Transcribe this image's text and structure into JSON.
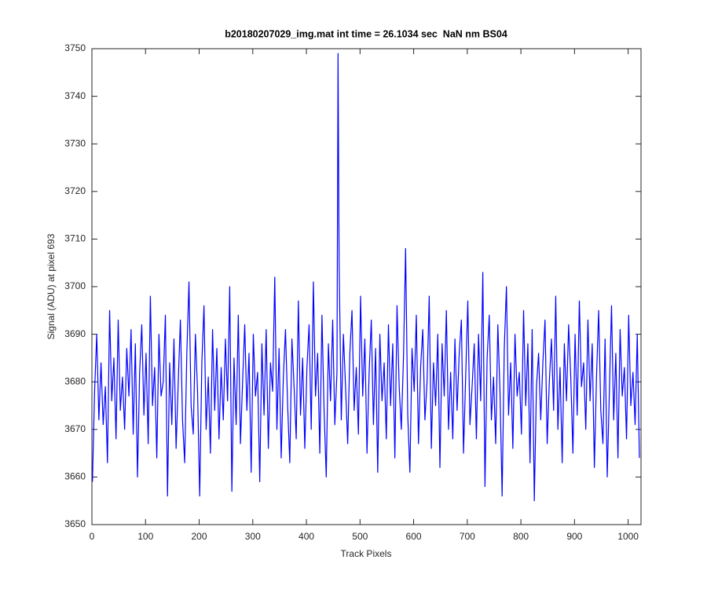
{
  "chart_data": {
    "type": "line",
    "title": "b20180207029_img.mat int time = 26.1034 sec  NaN nm BS04",
    "xlabel": "Track Pixels",
    "ylabel": "Signal (ADU) at pixel 693",
    "color": "#0000ff",
    "xlim": [
      0,
      1024
    ],
    "ylim": [
      3650,
      3750
    ],
    "xticks": [
      0,
      100,
      200,
      300,
      400,
      500,
      600,
      700,
      800,
      900,
      1000
    ],
    "yticks": [
      3650,
      3660,
      3670,
      3680,
      3690,
      3700,
      3710,
      3720,
      3730,
      3740,
      3750
    ],
    "x": [
      1,
      5,
      9,
      13,
      17,
      21,
      25,
      29,
      33,
      37,
      41,
      45,
      49,
      53,
      57,
      61,
      65,
      69,
      73,
      77,
      81,
      85,
      89,
      93,
      97,
      101,
      105,
      109,
      113,
      117,
      121,
      125,
      129,
      133,
      137,
      141,
      145,
      149,
      153,
      157,
      161,
      165,
      169,
      173,
      177,
      181,
      185,
      189,
      193,
      197,
      201,
      205,
      209,
      213,
      217,
      221,
      225,
      229,
      233,
      237,
      241,
      245,
      249,
      253,
      257,
      261,
      265,
      269,
      273,
      277,
      281,
      285,
      289,
      293,
      297,
      301,
      305,
      309,
      313,
      317,
      321,
      325,
      329,
      333,
      337,
      341,
      345,
      349,
      353,
      357,
      361,
      365,
      369,
      373,
      377,
      381,
      385,
      389,
      393,
      397,
      401,
      405,
      409,
      413,
      417,
      421,
      425,
      429,
      433,
      437,
      441,
      445,
      449,
      453,
      457,
      459,
      461,
      465,
      469,
      473,
      477,
      481,
      485,
      489,
      493,
      497,
      501,
      505,
      509,
      513,
      517,
      521,
      525,
      529,
      533,
      537,
      541,
      545,
      549,
      553,
      557,
      561,
      565,
      569,
      573,
      577,
      581,
      585,
      589,
      593,
      597,
      601,
      605,
      609,
      613,
      617,
      621,
      625,
      629,
      633,
      637,
      641,
      645,
      649,
      653,
      657,
      661,
      665,
      669,
      673,
      677,
      681,
      685,
      689,
      693,
      697,
      701,
      705,
      709,
      713,
      717,
      721,
      725,
      729,
      733,
      737,
      741,
      745,
      749,
      753,
      757,
      761,
      765,
      769,
      773,
      777,
      781,
      785,
      789,
      793,
      797,
      801,
      805,
      809,
      813,
      817,
      821,
      825,
      829,
      833,
      837,
      841,
      845,
      849,
      853,
      857,
      861,
      865,
      869,
      873,
      877,
      881,
      885,
      889,
      893,
      897,
      901,
      905,
      909,
      913,
      917,
      921,
      925,
      929,
      933,
      937,
      941,
      945,
      949,
      953,
      957,
      961,
      965,
      969,
      973,
      977,
      981,
      985,
      989,
      993,
      997,
      1001,
      1005,
      1009,
      1013,
      1017,
      1021
    ],
    "values": [
      3659,
      3678,
      3690,
      3672,
      3684,
      3671,
      3679,
      3663,
      3695,
      3676,
      3685,
      3668,
      3693,
      3674,
      3681,
      3670,
      3687,
      3677,
      3691,
      3669,
      3688,
      3660,
      3682,
      3692,
      3673,
      3686,
      3667,
      3698,
      3675,
      3683,
      3664,
      3690,
      3677,
      3680,
      3694,
      3656,
      3684,
      3671,
      3689,
      3666,
      3680,
      3693,
      3672,
      3663,
      3686,
      3701,
      3675,
      3669,
      3690,
      3678,
      3656,
      3684,
      3696,
      3670,
      3681,
      3665,
      3691,
      3674,
      3687,
      3668,
      3683,
      3672,
      3689,
      3676,
      3700,
      3657,
      3685,
      3671,
      3694,
      3667,
      3680,
      3692,
      3674,
      3686,
      3661,
      3690,
      3677,
      3682,
      3659,
      3688,
      3673,
      3691,
      3666,
      3684,
      3678,
      3702,
      3670,
      3687,
      3664,
      3681,
      3691,
      3675,
      3663,
      3689,
      3679,
      3668,
      3697,
      3673,
      3685,
      3666,
      3683,
      3692,
      3670,
      3701,
      3677,
      3686,
      3665,
      3694,
      3674,
      3660,
      3688,
      3676,
      3693,
      3671,
      3682,
      3749,
      3705,
      3672,
      3690,
      3679,
      3667,
      3686,
      3695,
      3674,
      3683,
      3669,
      3698,
      3677,
      3689,
      3665,
      3682,
      3693,
      3671,
      3687,
      3661,
      3690,
      3676,
      3684,
      3668,
      3692,
      3675,
      3688,
      3664,
      3696,
      3679,
      3670,
      3685,
      3708,
      3673,
      3661,
      3687,
      3678,
      3694,
      3667,
      3683,
      3691,
      3672,
      3680,
      3698,
      3666,
      3684,
      3675,
      3690,
      3662,
      3688,
      3677,
      3695,
      3670,
      3682,
      3668,
      3689,
      3674,
      3686,
      3693,
      3665,
      3681,
      3697,
      3671,
      3679,
      3688,
      3668,
      3690,
      3676,
      3703,
      3658,
      3685,
      3694,
      3672,
      3681,
      3667,
      3692,
      3678,
      3656,
      3687,
      3700,
      3673,
      3684,
      3666,
      3690,
      3677,
      3682,
      3669,
      3695,
      3675,
      3688,
      3663,
      3691,
      3655,
      3679,
      3686,
      3672,
      3684,
      3693,
      3667,
      3680,
      3689,
      3674,
      3698,
      3670,
      3683,
      3663,
      3688,
      3676,
      3692,
      3681,
      3665,
      3690,
      3673,
      3697,
      3679,
      3684,
      3670,
      3693,
      3676,
      3688,
      3662,
      3681,
      3695,
      3674,
      3667,
      3689,
      3660,
      3678,
      3696,
      3672,
      3686,
      3664,
      3691,
      3677,
      3683,
      3668,
      3694,
      3675,
      3682,
      3671,
      3690,
      3664
    ]
  }
}
